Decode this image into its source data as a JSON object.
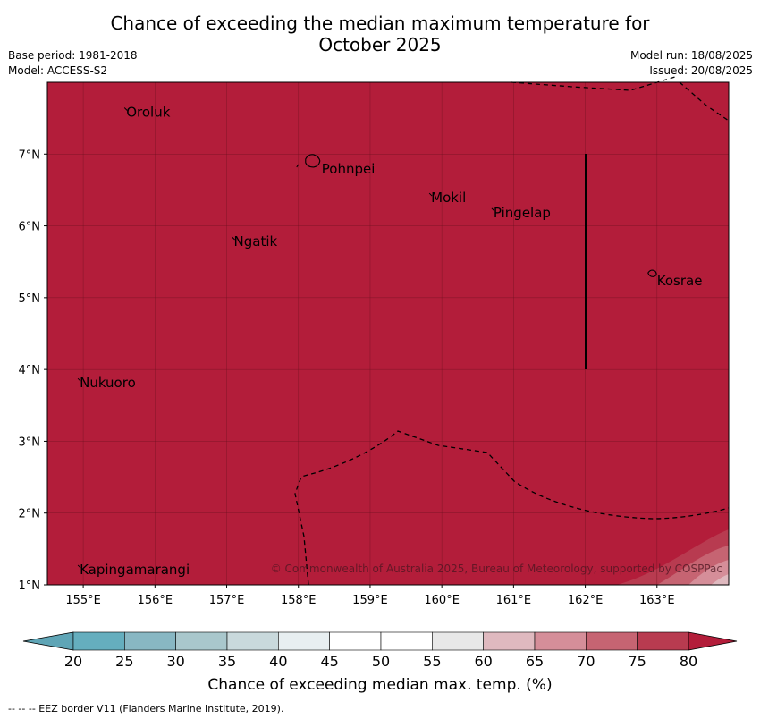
{
  "header": {
    "title_line1": "Chance of exceeding the median maximum temperature for",
    "title_line2": "October 2025",
    "base_period": "Base period: 1981-2018",
    "model": "Model: ACCESS-S2",
    "model_run": "Model run: 18/08/2025",
    "issued": "Issued: 20/08/2025"
  },
  "map": {
    "extent": {
      "lon_min": 154.5,
      "lon_max": 164.0,
      "lat_min": 1.0,
      "lat_max": 8.0
    },
    "x_ticks": [
      {
        "lon": 155,
        "label": "155°E"
      },
      {
        "lon": 156,
        "label": "156°E"
      },
      {
        "lon": 157,
        "label": "157°E"
      },
      {
        "lon": 158,
        "label": "158°E"
      },
      {
        "lon": 159,
        "label": "159°E"
      },
      {
        "lon": 160,
        "label": "160°E"
      },
      {
        "lon": 161,
        "label": "161°E"
      },
      {
        "lon": 162,
        "label": "162°E"
      },
      {
        "lon": 163,
        "label": "163°E"
      }
    ],
    "y_ticks": [
      {
        "lat": 7,
        "label": "7°N"
      },
      {
        "lat": 6,
        "label": "6°N"
      },
      {
        "lat": 5,
        "label": "5°N"
      },
      {
        "lat": 4,
        "label": "4°N"
      },
      {
        "lat": 3,
        "label": "3°N"
      },
      {
        "lat": 2,
        "label": "2°N"
      },
      {
        "lat": 1,
        "label": "1°N"
      }
    ],
    "background_color": "#b31d3a",
    "islands": [
      {
        "name": "Oroluk",
        "lon": 155.6,
        "lat": 7.62
      },
      {
        "name": "Pohnpei",
        "lon": 158.2,
        "lat": 6.88
      },
      {
        "name": "Mokil",
        "lon": 159.85,
        "lat": 6.43
      },
      {
        "name": "Pingelap",
        "lon": 160.72,
        "lat": 6.22
      },
      {
        "name": "Ngatik",
        "lon": 157.1,
        "lat": 5.82
      },
      {
        "name": "Kosrae",
        "lon": 162.95,
        "lat": 5.32
      },
      {
        "name": "Nukuoro",
        "lon": 154.95,
        "lat": 3.85
      },
      {
        "name": "Kapingamarangi",
        "lon": 154.95,
        "lat": 1.25
      }
    ],
    "copyright": "© Commonwealth of Australia 2025, Bureau of Meteorology, supported by COSPPac"
  },
  "colorbar": {
    "ticks": [
      "20",
      "25",
      "30",
      "35",
      "40",
      "45",
      "50",
      "55",
      "60",
      "65",
      "70",
      "75",
      "80"
    ],
    "colors": [
      "#65aebe",
      "#88b7c3",
      "#a9c7cc",
      "#c9d9dc",
      "#e8eff1",
      "#ffffff",
      "#ffffff",
      "#e8e8e8",
      "#dfb9bf",
      "#d58e99",
      "#c66472",
      "#b83b50"
    ],
    "under_color": "#5fa5b6",
    "over_color": "#b31d3a",
    "label": "Chance of exceeding median max. temp. (%)"
  },
  "footer": {
    "legend_line": "--  --  -- EEZ border V11 (Flanders Marine Institute, 2019)."
  }
}
